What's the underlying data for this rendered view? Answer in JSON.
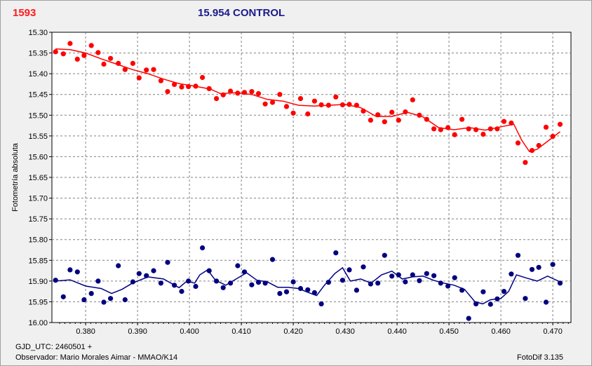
{
  "header": {
    "star_id": "1593",
    "title": "15.954 CONTROL"
  },
  "footer": {
    "gjd": "GJD_UTC: 2460501 +",
    "observer": "Observador: Mario Morales Aimar - MMAO/K14",
    "version": "FotoDif 3.135"
  },
  "colors": {
    "target": "#ff0000",
    "control": "#000080",
    "grid": "#808080",
    "plot_bg": "#ffffff"
  },
  "chart_data": {
    "type": "scatter",
    "title": "",
    "xlabel": "",
    "ylabel": "Fotometría absoluta",
    "xlim": [
      0.3735,
      0.4735
    ],
    "ylim": [
      15.3,
      16.0
    ],
    "y_inverted": true,
    "grid": true,
    "x_ticks": [
      "0.380",
      "0.390",
      "0.400",
      "0.410",
      "0.420",
      "0.430",
      "0.440",
      "0.450",
      "0.460",
      "0.470"
    ],
    "y_ticks": [
      "15.30",
      "15.35",
      "15.40",
      "15.45",
      "15.50",
      "15.55",
      "15.60",
      "15.65",
      "15.70",
      "15.75",
      "15.80",
      "15.85",
      "15.90",
      "15.95",
      "16.00"
    ],
    "series": [
      {
        "color": "#ff0000",
        "points": [
          [
            0.3742,
            15.347
          ],
          [
            0.3757,
            15.352
          ],
          [
            0.377,
            15.327
          ],
          [
            0.3784,
            15.365
          ],
          [
            0.3797,
            15.356
          ],
          [
            0.3811,
            15.332
          ],
          [
            0.3824,
            15.349
          ],
          [
            0.3835,
            15.377
          ],
          [
            0.3848,
            15.363
          ],
          [
            0.3863,
            15.375
          ],
          [
            0.3876,
            15.39
          ],
          [
            0.3891,
            15.375
          ],
          [
            0.3903,
            15.41
          ],
          [
            0.3917,
            15.391
          ],
          [
            0.3931,
            15.39
          ],
          [
            0.3945,
            15.417
          ],
          [
            0.3958,
            15.443
          ],
          [
            0.3971,
            15.426
          ],
          [
            0.3985,
            15.432
          ],
          [
            0.3998,
            15.431
          ],
          [
            0.4012,
            15.43
          ],
          [
            0.4025,
            15.409
          ],
          [
            0.4038,
            15.436
          ],
          [
            0.4052,
            15.46
          ],
          [
            0.4065,
            15.451
          ],
          [
            0.4079,
            15.442
          ],
          [
            0.4093,
            15.447
          ],
          [
            0.4106,
            15.445
          ],
          [
            0.412,
            15.443
          ],
          [
            0.4133,
            15.448
          ],
          [
            0.4146,
            15.473
          ],
          [
            0.416,
            15.469
          ],
          [
            0.4174,
            15.45
          ],
          [
            0.4187,
            15.479
          ],
          [
            0.42,
            15.495
          ],
          [
            0.4214,
            15.46
          ],
          [
            0.4228,
            15.497
          ],
          [
            0.4241,
            15.466
          ],
          [
            0.4254,
            15.475
          ],
          [
            0.4268,
            15.476
          ],
          [
            0.4282,
            15.456
          ],
          [
            0.4295,
            15.475
          ],
          [
            0.4308,
            15.474
          ],
          [
            0.4322,
            15.476
          ],
          [
            0.4335,
            15.49
          ],
          [
            0.4349,
            15.512
          ],
          [
            0.4363,
            15.499
          ],
          [
            0.4376,
            15.516
          ],
          [
            0.439,
            15.493
          ],
          [
            0.4403,
            15.512
          ],
          [
            0.4416,
            15.492
          ],
          [
            0.443,
            15.463
          ],
          [
            0.4443,
            15.5
          ],
          [
            0.4457,
            15.51
          ],
          [
            0.4471,
            15.533
          ],
          [
            0.4484,
            15.535
          ],
          [
            0.4498,
            15.53
          ],
          [
            0.4511,
            15.547
          ],
          [
            0.4525,
            15.51
          ],
          [
            0.4538,
            15.533
          ],
          [
            0.4552,
            15.535
          ],
          [
            0.4566,
            15.546
          ],
          [
            0.458,
            15.533
          ],
          [
            0.4593,
            15.533
          ],
          [
            0.4606,
            15.515
          ],
          [
            0.462,
            15.519
          ],
          [
            0.4633,
            15.567
          ],
          [
            0.4647,
            15.614
          ],
          [
            0.466,
            15.585
          ],
          [
            0.4673,
            15.573
          ],
          [
            0.4687,
            15.529
          ],
          [
            0.47,
            15.551
          ],
          [
            0.4714,
            15.522
          ]
        ],
        "trend": [
          [
            0.3742,
            15.34
          ],
          [
            0.377,
            15.342
          ],
          [
            0.38,
            15.35
          ],
          [
            0.383,
            15.364
          ],
          [
            0.386,
            15.377
          ],
          [
            0.389,
            15.39
          ],
          [
            0.392,
            15.4
          ],
          [
            0.395,
            15.413
          ],
          [
            0.398,
            15.424
          ],
          [
            0.401,
            15.43
          ],
          [
            0.404,
            15.437
          ],
          [
            0.406,
            15.448
          ],
          [
            0.409,
            15.446
          ],
          [
            0.412,
            15.45
          ],
          [
            0.415,
            15.462
          ],
          [
            0.418,
            15.466
          ],
          [
            0.421,
            15.476
          ],
          [
            0.424,
            15.478
          ],
          [
            0.427,
            15.476
          ],
          [
            0.43,
            15.474
          ],
          [
            0.433,
            15.482
          ],
          [
            0.436,
            15.503
          ],
          [
            0.439,
            15.503
          ],
          [
            0.442,
            15.493
          ],
          [
            0.445,
            15.504
          ],
          [
            0.448,
            15.53
          ],
          [
            0.451,
            15.535
          ],
          [
            0.454,
            15.53
          ],
          [
            0.457,
            15.536
          ],
          [
            0.46,
            15.528
          ],
          [
            0.4625,
            15.522
          ],
          [
            0.464,
            15.56
          ],
          [
            0.4655,
            15.588
          ],
          [
            0.467,
            15.582
          ],
          [
            0.469,
            15.563
          ],
          [
            0.4714,
            15.54
          ]
        ]
      },
      {
        "color": "#000080",
        "points": [
          [
            0.3742,
            15.898
          ],
          [
            0.3757,
            15.938
          ],
          [
            0.377,
            15.873
          ],
          [
            0.3784,
            15.878
          ],
          [
            0.3797,
            15.945
          ],
          [
            0.3811,
            15.93
          ],
          [
            0.3824,
            15.9
          ],
          [
            0.3835,
            15.951
          ],
          [
            0.3848,
            15.942
          ],
          [
            0.3863,
            15.863
          ],
          [
            0.3876,
            15.945
          ],
          [
            0.3891,
            15.902
          ],
          [
            0.3903,
            15.882
          ],
          [
            0.3917,
            15.887
          ],
          [
            0.3931,
            15.875
          ],
          [
            0.3945,
            15.905
          ],
          [
            0.3958,
            15.855
          ],
          [
            0.3971,
            15.91
          ],
          [
            0.3985,
            15.925
          ],
          [
            0.3998,
            15.9
          ],
          [
            0.4012,
            15.913
          ],
          [
            0.4025,
            15.82
          ],
          [
            0.4038,
            15.875
          ],
          [
            0.4052,
            15.9
          ],
          [
            0.4065,
            15.916
          ],
          [
            0.4079,
            15.905
          ],
          [
            0.4093,
            15.863
          ],
          [
            0.4106,
            15.878
          ],
          [
            0.412,
            15.909
          ],
          [
            0.4133,
            15.903
          ],
          [
            0.4146,
            15.905
          ],
          [
            0.416,
            15.848
          ],
          [
            0.4174,
            15.93
          ],
          [
            0.4187,
            15.926
          ],
          [
            0.42,
            15.902
          ],
          [
            0.4214,
            15.918
          ],
          [
            0.4228,
            15.921
          ],
          [
            0.4241,
            15.928
          ],
          [
            0.4254,
            15.955
          ],
          [
            0.4268,
            15.903
          ],
          [
            0.4282,
            15.832
          ],
          [
            0.4295,
            15.898
          ],
          [
            0.4308,
            15.873
          ],
          [
            0.4322,
            15.922
          ],
          [
            0.4335,
            15.866
          ],
          [
            0.4349,
            15.907
          ],
          [
            0.4363,
            15.905
          ],
          [
            0.4376,
            15.838
          ],
          [
            0.439,
            15.888
          ],
          [
            0.4403,
            15.885
          ],
          [
            0.4416,
            15.902
          ],
          [
            0.443,
            15.885
          ],
          [
            0.4443,
            15.899
          ],
          [
            0.4457,
            15.882
          ],
          [
            0.4471,
            15.887
          ],
          [
            0.4484,
            15.905
          ],
          [
            0.4498,
            15.912
          ],
          [
            0.4511,
            15.892
          ],
          [
            0.4525,
            15.922
          ],
          [
            0.4538,
            15.99
          ],
          [
            0.4552,
            15.955
          ],
          [
            0.4566,
            15.926
          ],
          [
            0.458,
            15.956
          ],
          [
            0.4593,
            15.943
          ],
          [
            0.4606,
            15.925
          ],
          [
            0.462,
            15.883
          ],
          [
            0.4633,
            15.838
          ],
          [
            0.4647,
            15.942
          ],
          [
            0.466,
            15.872
          ],
          [
            0.4673,
            15.867
          ],
          [
            0.4687,
            15.951
          ],
          [
            0.47,
            15.86
          ],
          [
            0.4714,
            15.905
          ]
        ],
        "trend": [
          [
            0.3742,
            15.9
          ],
          [
            0.377,
            15.897
          ],
          [
            0.38,
            15.912
          ],
          [
            0.383,
            15.918
          ],
          [
            0.385,
            15.93
          ],
          [
            0.387,
            15.92
          ],
          [
            0.389,
            15.905
          ],
          [
            0.392,
            15.89
          ],
          [
            0.395,
            15.895
          ],
          [
            0.398,
            15.916
          ],
          [
            0.3995,
            15.9
          ],
          [
            0.401,
            15.905
          ],
          [
            0.402,
            15.885
          ],
          [
            0.4035,
            15.873
          ],
          [
            0.405,
            15.898
          ],
          [
            0.407,
            15.91
          ],
          [
            0.409,
            15.895
          ],
          [
            0.411,
            15.88
          ],
          [
            0.413,
            15.898
          ],
          [
            0.415,
            15.902
          ],
          [
            0.417,
            15.915
          ],
          [
            0.419,
            15.915
          ],
          [
            0.421,
            15.918
          ],
          [
            0.423,
            15.928
          ],
          [
            0.4245,
            15.935
          ],
          [
            0.426,
            15.91
          ],
          [
            0.428,
            15.882
          ],
          [
            0.4295,
            15.868
          ],
          [
            0.431,
            15.9
          ],
          [
            0.433,
            15.895
          ],
          [
            0.435,
            15.905
          ],
          [
            0.437,
            15.885
          ],
          [
            0.439,
            15.876
          ],
          [
            0.441,
            15.895
          ],
          [
            0.443,
            15.89
          ],
          [
            0.445,
            15.888
          ],
          [
            0.447,
            15.898
          ],
          [
            0.449,
            15.905
          ],
          [
            0.451,
            15.91
          ],
          [
            0.453,
            15.92
          ],
          [
            0.455,
            15.95
          ],
          [
            0.4565,
            15.955
          ],
          [
            0.458,
            15.945
          ],
          [
            0.46,
            15.942
          ],
          [
            0.4615,
            15.925
          ],
          [
            0.463,
            15.885
          ],
          [
            0.465,
            15.893
          ],
          [
            0.467,
            15.9
          ],
          [
            0.469,
            15.888
          ],
          [
            0.4714,
            15.902
          ]
        ]
      }
    ]
  }
}
